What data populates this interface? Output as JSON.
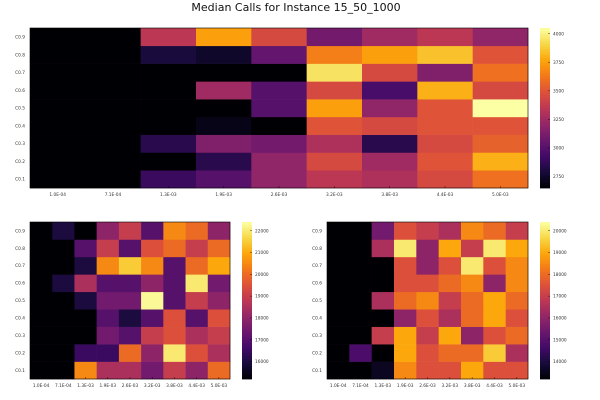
{
  "title": "Median Calls for Instance 15_50_1000",
  "chart_data": [
    {
      "type": "heatmap",
      "xlabels": [
        "1.0E-04",
        "7.1E-04",
        "1.3E-03",
        "1.9E-03",
        "2.6E-03",
        "3.2E-03",
        "3.8E-03",
        "4.4E-03",
        "5.0E-03"
      ],
      "ylabels": [
        "C0.1",
        "C0.2",
        "C0.3",
        "C0.4",
        "C0.5",
        "C0.6",
        "C0.7",
        "C0.8",
        "C0.9"
      ],
      "colorbar_ticks": [
        2750,
        3000,
        3250,
        3500,
        3750,
        4000
      ],
      "zlim": [
        2650,
        4050
      ],
      "values": [
        [
          2650,
          2650,
          2900,
          3000,
          3200,
          3350,
          3300,
          3450,
          3600
        ],
        [
          2650,
          2650,
          2650,
          2850,
          3200,
          3450,
          3250,
          3500,
          3800
        ],
        [
          2650,
          2650,
          2850,
          3150,
          3100,
          3300,
          2850,
          3450,
          3550
        ],
        [
          2650,
          2650,
          2650,
          2700,
          2650,
          3500,
          3450,
          3500,
          3500
        ],
        [
          2650,
          2650,
          2650,
          2650,
          3000,
          3750,
          3200,
          3500,
          4050
        ],
        [
          2650,
          2650,
          2650,
          3250,
          3000,
          3450,
          2950,
          3800,
          3450
        ],
        [
          2650,
          2650,
          2650,
          2650,
          2650,
          3950,
          3450,
          3150,
          3600
        ],
        [
          2650,
          2650,
          2800,
          2750,
          3050,
          3650,
          3750,
          3850,
          3500
        ],
        [
          2650,
          2650,
          3350,
          3750,
          3450,
          3100,
          3250,
          3350,
          3200
        ]
      ]
    },
    {
      "type": "heatmap",
      "xlabels": [
        "1.0E-04",
        "7.1E-04",
        "1.3E-03",
        "1.9E-03",
        "2.6E-03",
        "3.2E-03",
        "3.8E-03",
        "4.4E-03",
        "5.0E-03"
      ],
      "ylabels": [
        "C0.1",
        "C0.2",
        "C0.3",
        "C0.4",
        "C0.5",
        "C0.6",
        "C0.7",
        "C0.8",
        "C0.9"
      ],
      "colorbar_ticks": [
        16000,
        17000,
        18000,
        19000,
        20000,
        21000,
        22000
      ],
      "zlim": [
        15200,
        22400
      ],
      "values": [
        [
          15200,
          15200,
          20500,
          18500,
          18500,
          17500,
          19000,
          18000,
          20000
        ],
        [
          15200,
          15200,
          16500,
          16500,
          20000,
          18000,
          22000,
          19500,
          18500
        ],
        [
          15200,
          15200,
          15200,
          17500,
          17000,
          19000,
          19500,
          18500,
          19000
        ],
        [
          15200,
          15200,
          15200,
          17000,
          16000,
          17000,
          19500,
          17000,
          19500
        ],
        [
          15200,
          15200,
          16000,
          17500,
          17500,
          22300,
          17000,
          19000,
          18000
        ],
        [
          15200,
          16000,
          18500,
          17000,
          17000,
          18000,
          17000,
          22000,
          17500
        ],
        [
          15200,
          15200,
          16000,
          20500,
          21500,
          20500,
          17000,
          20000,
          21000
        ],
        [
          15200,
          15200,
          17000,
          19000,
          17000,
          19500,
          20000,
          19000,
          20000
        ],
        [
          15200,
          16000,
          15200,
          18000,
          19000,
          17000,
          20500,
          20000,
          18000
        ]
      ]
    },
    {
      "type": "heatmap",
      "xlabels": [
        "1.0E-04",
        "7.1E-04",
        "1.3E-03",
        "1.9E-03",
        "2.6E-03",
        "3.2E-03",
        "3.8E-03",
        "4.4E-03",
        "5.0E-03"
      ],
      "ylabels": [
        "C0.1",
        "C0.2",
        "C0.3",
        "C0.4",
        "C0.5",
        "C0.6",
        "C0.7",
        "C0.8",
        "C0.9"
      ],
      "colorbar_ticks": [
        14000,
        15000,
        16000,
        17000,
        18000,
        19000,
        20000
      ],
      "zlim": [
        13200,
        20400
      ],
      "values": [
        [
          13200,
          13200,
          13600,
          18500,
          17500,
          17500,
          19000,
          17500,
          17500
        ],
        [
          13200,
          14800,
          13200,
          19000,
          17500,
          18000,
          18000,
          19500,
          16500
        ],
        [
          13200,
          13200,
          17000,
          19000,
          17000,
          19000,
          16000,
          17500,
          18000
        ],
        [
          13200,
          13200,
          13200,
          16000,
          17500,
          16500,
          18000,
          19000,
          17500
        ],
        [
          13200,
          13200,
          16500,
          18000,
          18500,
          17000,
          18000,
          19000,
          18000
        ],
        [
          13200,
          13200,
          13200,
          17500,
          17500,
          18000,
          18500,
          16000,
          18500
        ],
        [
          13200,
          13200,
          13200,
          17500,
          16000,
          17500,
          20000,
          17500,
          18500
        ],
        [
          13200,
          13200,
          16500,
          20000,
          16000,
          19000,
          17000,
          20000,
          19000
        ],
        [
          13200,
          13200,
          15500,
          17500,
          17000,
          16500,
          18500,
          18000,
          17000
        ]
      ]
    }
  ]
}
